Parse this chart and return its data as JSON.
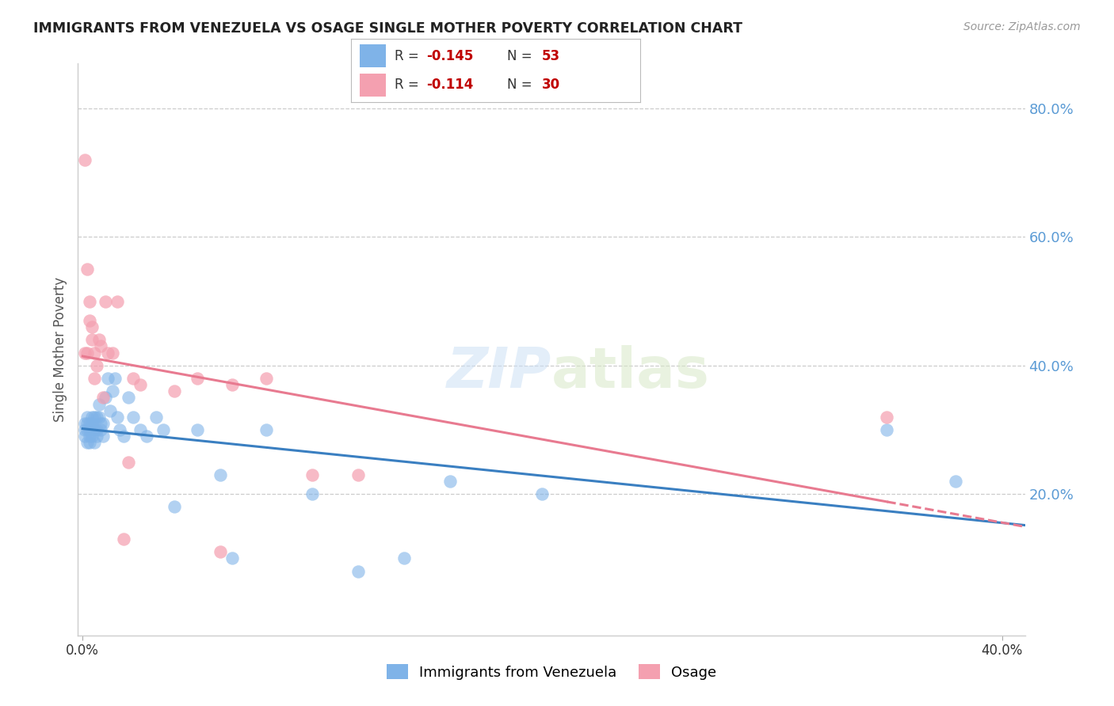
{
  "title": "IMMIGRANTS FROM VENEZUELA VS OSAGE SINGLE MOTHER POVERTY CORRELATION CHART",
  "source": "Source: ZipAtlas.com",
  "ylabel": "Single Mother Poverty",
  "right_ytick_vals": [
    0.2,
    0.4,
    0.6,
    0.8
  ],
  "right_ytick_labels": [
    "20.0%",
    "40.0%",
    "60.0%",
    "80.0%"
  ],
  "xtick_vals": [
    0.0,
    0.4
  ],
  "xtick_labels": [
    "0.0%",
    "40.0%"
  ],
  "xlim": [
    -0.002,
    0.41
  ],
  "ylim": [
    -0.02,
    0.87
  ],
  "watermark_zip": "ZIP",
  "watermark_atlas": "atlas",
  "color_blue": "#7fb3e8",
  "color_pink": "#f4a0b0",
  "line_blue": "#3a7fc1",
  "line_pink": "#e87a90",
  "legend_r1_val": "-0.145",
  "legend_n1_val": "53",
  "legend_r2_val": "-0.114",
  "legend_n2_val": "30",
  "blue_x": [
    0.001,
    0.001,
    0.001,
    0.002,
    0.002,
    0.002,
    0.002,
    0.003,
    0.003,
    0.003,
    0.003,
    0.004,
    0.004,
    0.004,
    0.004,
    0.005,
    0.005,
    0.005,
    0.006,
    0.006,
    0.006,
    0.007,
    0.007,
    0.008,
    0.008,
    0.009,
    0.009,
    0.01,
    0.011,
    0.012,
    0.013,
    0.014,
    0.015,
    0.016,
    0.018,
    0.02,
    0.022,
    0.025,
    0.028,
    0.032,
    0.035,
    0.04,
    0.05,
    0.06,
    0.065,
    0.08,
    0.1,
    0.12,
    0.14,
    0.16,
    0.2,
    0.35,
    0.38
  ],
  "blue_y": [
    0.3,
    0.31,
    0.29,
    0.31,
    0.3,
    0.28,
    0.32,
    0.3,
    0.31,
    0.29,
    0.28,
    0.3,
    0.32,
    0.29,
    0.31,
    0.3,
    0.28,
    0.32,
    0.3,
    0.32,
    0.29,
    0.34,
    0.32,
    0.31,
    0.3,
    0.29,
    0.31,
    0.35,
    0.38,
    0.33,
    0.36,
    0.38,
    0.32,
    0.3,
    0.29,
    0.35,
    0.32,
    0.3,
    0.29,
    0.32,
    0.3,
    0.18,
    0.3,
    0.23,
    0.1,
    0.3,
    0.2,
    0.08,
    0.1,
    0.22,
    0.2,
    0.3,
    0.22
  ],
  "pink_x": [
    0.001,
    0.001,
    0.002,
    0.002,
    0.003,
    0.003,
    0.004,
    0.004,
    0.005,
    0.005,
    0.006,
    0.007,
    0.008,
    0.009,
    0.01,
    0.011,
    0.013,
    0.015,
    0.018,
    0.02,
    0.022,
    0.025,
    0.04,
    0.05,
    0.06,
    0.065,
    0.08,
    0.1,
    0.12,
    0.35
  ],
  "pink_y": [
    0.72,
    0.42,
    0.55,
    0.42,
    0.5,
    0.47,
    0.46,
    0.44,
    0.42,
    0.38,
    0.4,
    0.44,
    0.43,
    0.35,
    0.5,
    0.42,
    0.42,
    0.5,
    0.13,
    0.25,
    0.38,
    0.37,
    0.36,
    0.38,
    0.11,
    0.37,
    0.38,
    0.23,
    0.23,
    0.32
  ]
}
